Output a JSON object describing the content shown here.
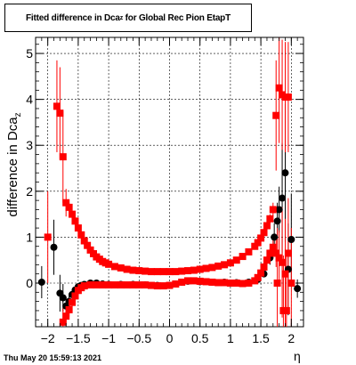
{
  "title": {
    "main": "Fitted difference in Dca",
    "sub": "z",
    "rest": " for Global Rec Pion EtapT"
  },
  "footer": {
    "timestamp": "Thu May 20 15:59:13 2021"
  },
  "chart_data": {
    "type": "scatter",
    "title": "Fitted difference in Dca_z for Global Rec Pion EtapT",
    "xlabel": "η",
    "ylabel_main": "difference in Dca",
    "ylabel_sub": "z",
    "xlim": [
      -2.2,
      2.2
    ],
    "ylim": [
      -0.95,
      5.35
    ],
    "xticks": [
      -2,
      -1.5,
      -1,
      -0.5,
      0,
      0.5,
      1,
      1.5,
      2
    ],
    "xtick_labels": [
      "−2",
      "−1.5",
      "−1",
      "−0.5",
      "0",
      "0.5",
      "1",
      "1.5",
      "2"
    ],
    "yticks": [
      0,
      1,
      2,
      3,
      4,
      5
    ],
    "ytick_labels": [
      "0",
      "1",
      "2",
      "3",
      "4",
      "5"
    ],
    "grid": true,
    "colors": {
      "black_series": "#000000",
      "red_series": "#ff0000"
    },
    "series": [
      {
        "marker": "circle",
        "color": "#000000",
        "points": [
          [
            -2.1,
            0.02,
            0.35
          ],
          [
            -1.9,
            0.78,
            0.6
          ],
          [
            -1.8,
            -0.22,
            0.4
          ],
          [
            -1.75,
            -0.32,
            0.3
          ],
          [
            -1.7,
            -0.5,
            0.2
          ],
          [
            -1.65,
            -0.4,
            0.15
          ],
          [
            -1.6,
            -0.25,
            0.1
          ],
          [
            -1.55,
            -0.15,
            0.06
          ],
          [
            -1.5,
            -0.08,
            0.04
          ],
          [
            -1.45,
            -0.05,
            0.03
          ],
          [
            -1.4,
            -0.03,
            0.02
          ],
          [
            -1.3,
            0.0,
            0.01
          ],
          [
            -1.2,
            0.0,
            0.01
          ],
          [
            -1.1,
            -0.02,
            0.01
          ],
          [
            -1.0,
            -0.03,
            0.01
          ],
          [
            -0.8,
            -0.03,
            0.01
          ],
          [
            -0.6,
            -0.03,
            0.01
          ],
          [
            -0.4,
            -0.04,
            0.01
          ],
          [
            -0.2,
            -0.05,
            0.01
          ],
          [
            0.0,
            -0.05,
            0.01
          ],
          [
            0.1,
            -0.02,
            0.01
          ],
          [
            0.2,
            0.02,
            0.01
          ],
          [
            0.3,
            0.04,
            0.01
          ],
          [
            0.5,
            0.03,
            0.01
          ],
          [
            0.7,
            0.02,
            0.01
          ],
          [
            0.9,
            0.02,
            0.01
          ],
          [
            1.1,
            0.01,
            0.01
          ],
          [
            1.3,
            0.02,
            0.02
          ],
          [
            1.45,
            0.08,
            0.04
          ],
          [
            1.55,
            0.2,
            0.06
          ],
          [
            1.65,
            0.55,
            0.15
          ],
          [
            1.72,
            1.0,
            0.3
          ],
          [
            1.77,
            1.35,
            0.4
          ],
          [
            1.8,
            1.6,
            0.5
          ],
          [
            1.85,
            1.85,
            1.2
          ],
          [
            1.9,
            2.4,
            1.5
          ],
          [
            1.95,
            0.3,
            1.0
          ],
          [
            2.0,
            0.95,
            1.0
          ],
          [
            2.1,
            -0.12,
            0.2
          ]
        ]
      },
      {
        "marker": "square",
        "color": "#ff0000",
        "points": [
          [
            -2.0,
            1.0,
            1.0
          ],
          [
            -1.85,
            3.85,
            1.0
          ],
          [
            -1.8,
            3.7,
            1.0
          ],
          [
            -1.75,
            2.75,
            1.0
          ],
          [
            -1.7,
            1.75,
            0.3
          ],
          [
            -1.65,
            1.65,
            0.1
          ],
          [
            -1.6,
            1.5,
            0.06
          ],
          [
            -1.55,
            1.35,
            0.05
          ],
          [
            -1.5,
            1.2,
            0.04
          ],
          [
            -1.45,
            1.05,
            0.03
          ],
          [
            -1.4,
            0.92,
            0.03
          ],
          [
            -1.35,
            0.82,
            0.02
          ],
          [
            -1.3,
            0.72,
            0.02
          ],
          [
            -1.25,
            0.64,
            0.02
          ],
          [
            -1.2,
            0.57,
            0.02
          ],
          [
            -1.15,
            0.52,
            0.02
          ],
          [
            -1.1,
            0.47,
            0.02
          ],
          [
            -1.05,
            0.44,
            0.02
          ],
          [
            -1.0,
            0.41,
            0.02
          ],
          [
            -0.9,
            0.36,
            0.02
          ],
          [
            -0.8,
            0.33,
            0.02
          ],
          [
            -0.7,
            0.3,
            0.02
          ],
          [
            -0.6,
            0.28,
            0.02
          ],
          [
            -0.5,
            0.27,
            0.02
          ],
          [
            -0.4,
            0.26,
            0.02
          ],
          [
            -0.3,
            0.25,
            0.02
          ],
          [
            -0.2,
            0.25,
            0.02
          ],
          [
            -0.1,
            0.25,
            0.02
          ],
          [
            0.0,
            0.25,
            0.02
          ],
          [
            0.1,
            0.25,
            0.02
          ],
          [
            0.2,
            0.26,
            0.02
          ],
          [
            0.3,
            0.27,
            0.02
          ],
          [
            0.4,
            0.28,
            0.02
          ],
          [
            0.5,
            0.3,
            0.02
          ],
          [
            0.6,
            0.32,
            0.02
          ],
          [
            0.7,
            0.34,
            0.02
          ],
          [
            0.8,
            0.37,
            0.02
          ],
          [
            0.9,
            0.4,
            0.02
          ],
          [
            1.0,
            0.44,
            0.02
          ],
          [
            1.1,
            0.5,
            0.02
          ],
          [
            1.2,
            0.58,
            0.02
          ],
          [
            1.3,
            0.68,
            0.03
          ],
          [
            1.4,
            0.8,
            0.03
          ],
          [
            1.45,
            0.88,
            0.04
          ],
          [
            1.5,
            0.98,
            0.05
          ],
          [
            1.55,
            1.1,
            0.06
          ],
          [
            1.6,
            1.25,
            0.08
          ],
          [
            1.65,
            1.4,
            0.1
          ],
          [
            1.7,
            1.6,
            0.15
          ],
          [
            1.75,
            3.65,
            1.2
          ],
          [
            1.8,
            4.25,
            1.2
          ],
          [
            1.85,
            4.1,
            1.2
          ],
          [
            1.9,
            4.05,
            1.2
          ],
          [
            1.95,
            4.05,
            1.2
          ],
          [
            -1.75,
            -0.85,
            0.3
          ],
          [
            -1.7,
            -0.72,
            0.2
          ],
          [
            -1.65,
            -0.58,
            0.15
          ],
          [
            -1.6,
            -0.42,
            0.1
          ],
          [
            -1.55,
            -0.28,
            0.06
          ],
          [
            -1.5,
            -0.16,
            0.04
          ],
          [
            -1.45,
            -0.1,
            0.03
          ],
          [
            -1.4,
            -0.06,
            0.02
          ],
          [
            -1.3,
            -0.04,
            0.01
          ],
          [
            -1.2,
            -0.04,
            0.01
          ],
          [
            -1.1,
            -0.04,
            0.01
          ],
          [
            -1.0,
            -0.04,
            0.01
          ],
          [
            -0.9,
            -0.04,
            0.01
          ],
          [
            -0.8,
            -0.04,
            0.01
          ],
          [
            -0.7,
            -0.04,
            0.01
          ],
          [
            -0.6,
            -0.04,
            0.01
          ],
          [
            -0.5,
            -0.04,
            0.01
          ],
          [
            -0.4,
            -0.04,
            0.01
          ],
          [
            -0.3,
            -0.05,
            0.01
          ],
          [
            -0.2,
            -0.06,
            0.01
          ],
          [
            -0.1,
            -0.06,
            0.01
          ],
          [
            0.0,
            -0.05,
            0.01
          ],
          [
            0.1,
            -0.02,
            0.01
          ],
          [
            0.2,
            0.02,
            0.01
          ],
          [
            0.3,
            0.05,
            0.01
          ],
          [
            0.4,
            0.05,
            0.01
          ],
          [
            0.5,
            0.04,
            0.01
          ],
          [
            0.6,
            0.03,
            0.01
          ],
          [
            0.7,
            0.02,
            0.01
          ],
          [
            0.8,
            0.01,
            0.01
          ],
          [
            0.9,
            0.01,
            0.01
          ],
          [
            1.0,
            0.0,
            0.01
          ],
          [
            1.1,
            0.0,
            0.01
          ],
          [
            1.2,
            -0.01,
            0.01
          ],
          [
            1.3,
            0.0,
            0.02
          ],
          [
            1.4,
            0.05,
            0.03
          ],
          [
            1.45,
            0.12,
            0.04
          ],
          [
            1.5,
            0.22,
            0.05
          ],
          [
            1.55,
            0.35,
            0.06
          ],
          [
            1.6,
            0.5,
            0.08
          ],
          [
            1.65,
            0.65,
            0.1
          ],
          [
            1.7,
            0.78,
            0.15
          ],
          [
            1.75,
            0.65,
            0.3
          ],
          [
            1.8,
            0.55,
            0.6
          ],
          [
            1.85,
            0.45,
            1.2
          ],
          [
            1.9,
            0.2,
            1.2
          ],
          [
            1.95,
            0.65,
            1.2
          ],
          [
            2.0,
            0.0,
            1.2
          ],
          [
            1.77,
            0.0,
            1.2
          ],
          [
            1.87,
            -0.6,
            1.2
          ],
          [
            1.92,
            -0.6,
            1.2
          ]
        ]
      }
    ]
  }
}
